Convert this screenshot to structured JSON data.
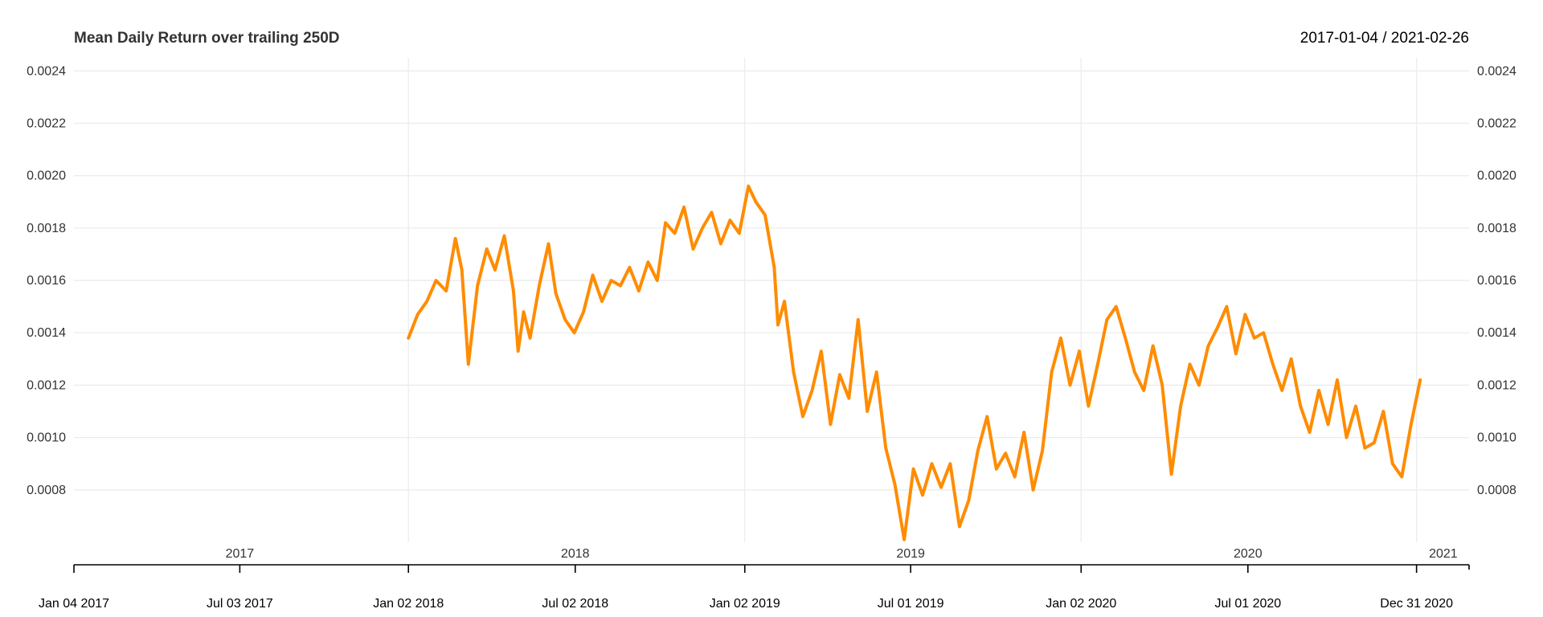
{
  "chart_data": {
    "type": "line",
    "title": "Mean Daily Return over trailing 250D",
    "date_range": "2017-01-04 / 2021-02-26",
    "xlabel": "",
    "ylabel": "",
    "x_start": "2017-01-04",
    "x_end": "2021-02-26",
    "ylim": [
      0.0006,
      0.00245
    ],
    "y_ticks": [
      "0.0008",
      "0.0010",
      "0.0012",
      "0.0014",
      "0.0016",
      "0.0018",
      "0.0020",
      "0.0022",
      "0.0024"
    ],
    "year_labels": [
      {
        "label": "2017",
        "date": "2017-07-03"
      },
      {
        "label": "2018",
        "date": "2018-07-02"
      },
      {
        "label": "2019",
        "date": "2019-07-01"
      },
      {
        "label": "2020",
        "date": "2020-07-01"
      },
      {
        "label": "2021",
        "date": "2021-01-29"
      }
    ],
    "year_grid_dates": [
      "2018-01-02",
      "2019-01-02",
      "2020-01-02",
      "2020-12-31"
    ],
    "date_ticks": [
      {
        "label": "Jan 04 2017",
        "date": "2017-01-04"
      },
      {
        "label": "Jul 03 2017",
        "date": "2017-07-03"
      },
      {
        "label": "Jan 02 2018",
        "date": "2018-01-02"
      },
      {
        "label": "Jul 02 2018",
        "date": "2018-07-02"
      },
      {
        "label": "Jan 02 2019",
        "date": "2019-01-02"
      },
      {
        "label": "Jul 01 2019",
        "date": "2019-07-01"
      },
      {
        "label": "Jan 02 2020",
        "date": "2020-01-02"
      },
      {
        "label": "Jul 01 2020",
        "date": "2020-07-01"
      },
      {
        "label": "Dec 31 2020",
        "date": "2020-12-31"
      }
    ],
    "minor_tick_dates": [
      "2021-02-26"
    ],
    "grid": true,
    "series": [
      {
        "color": "#ff8c00",
        "points": [
          [
            "2018-01-02",
            0.00138
          ],
          [
            "2018-01-12",
            0.00147
          ],
          [
            "2018-01-22",
            0.00152
          ],
          [
            "2018-02-01",
            0.0016
          ],
          [
            "2018-02-12",
            0.00156
          ],
          [
            "2018-02-22",
            0.00176
          ],
          [
            "2018-03-01",
            0.00164
          ],
          [
            "2018-03-08",
            0.00128
          ],
          [
            "2018-03-18",
            0.00158
          ],
          [
            "2018-03-28",
            0.00172
          ],
          [
            "2018-04-06",
            0.00164
          ],
          [
            "2018-04-16",
            0.00177
          ],
          [
            "2018-04-26",
            0.00156
          ],
          [
            "2018-05-01",
            0.00133
          ],
          [
            "2018-05-07",
            0.00148
          ],
          [
            "2018-05-14",
            0.00138
          ],
          [
            "2018-05-24",
            0.00158
          ],
          [
            "2018-06-03",
            0.00174
          ],
          [
            "2018-06-11",
            0.00155
          ],
          [
            "2018-06-21",
            0.00145
          ],
          [
            "2018-07-01",
            0.0014
          ],
          [
            "2018-07-11",
            0.00148
          ],
          [
            "2018-07-21",
            0.00162
          ],
          [
            "2018-07-31",
            0.00152
          ],
          [
            "2018-08-10",
            0.0016
          ],
          [
            "2018-08-20",
            0.00158
          ],
          [
            "2018-08-30",
            0.00165
          ],
          [
            "2018-09-09",
            0.00156
          ],
          [
            "2018-09-19",
            0.00167
          ],
          [
            "2018-09-29",
            0.0016
          ],
          [
            "2018-10-08",
            0.00182
          ],
          [
            "2018-10-18",
            0.00178
          ],
          [
            "2018-10-28",
            0.00188
          ],
          [
            "2018-11-07",
            0.00172
          ],
          [
            "2018-11-17",
            0.0018
          ],
          [
            "2018-11-27",
            0.00186
          ],
          [
            "2018-12-07",
            0.00174
          ],
          [
            "2018-12-17",
            0.00183
          ],
          [
            "2018-12-27",
            0.00178
          ],
          [
            "2019-01-06",
            0.00196
          ],
          [
            "2019-01-14",
            0.0019
          ],
          [
            "2019-01-24",
            0.00185
          ],
          [
            "2019-02-03",
            0.00165
          ],
          [
            "2019-02-07",
            0.00143
          ],
          [
            "2019-02-14",
            0.00152
          ],
          [
            "2019-02-24",
            0.00125
          ],
          [
            "2019-03-06",
            0.00108
          ],
          [
            "2019-03-16",
            0.00118
          ],
          [
            "2019-03-26",
            0.00133
          ],
          [
            "2019-04-05",
            0.00105
          ],
          [
            "2019-04-15",
            0.00124
          ],
          [
            "2019-04-25",
            0.00115
          ],
          [
            "2019-05-05",
            0.00145
          ],
          [
            "2019-05-15",
            0.0011
          ],
          [
            "2019-05-25",
            0.00125
          ],
          [
            "2019-06-04",
            0.00096
          ],
          [
            "2019-06-14",
            0.00082
          ],
          [
            "2019-06-24",
            0.00061
          ],
          [
            "2019-07-04",
            0.00088
          ],
          [
            "2019-07-14",
            0.00078
          ],
          [
            "2019-07-24",
            0.0009
          ],
          [
            "2019-08-03",
            0.00081
          ],
          [
            "2019-08-13",
            0.0009
          ],
          [
            "2019-08-23",
            0.00066
          ],
          [
            "2019-09-02",
            0.00076
          ],
          [
            "2019-09-12",
            0.00095
          ],
          [
            "2019-09-22",
            0.00108
          ],
          [
            "2019-10-02",
            0.00088
          ],
          [
            "2019-10-12",
            0.00094
          ],
          [
            "2019-10-22",
            0.00085
          ],
          [
            "2019-11-01",
            0.00102
          ],
          [
            "2019-11-11",
            0.0008
          ],
          [
            "2019-11-21",
            0.00095
          ],
          [
            "2019-12-01",
            0.00125
          ],
          [
            "2019-12-11",
            0.00138
          ],
          [
            "2019-12-21",
            0.0012
          ],
          [
            "2019-12-31",
            0.00133
          ],
          [
            "2020-01-10",
            0.00112
          ],
          [
            "2020-01-20",
            0.00128
          ],
          [
            "2020-01-30",
            0.00145
          ],
          [
            "2020-02-09",
            0.0015
          ],
          [
            "2020-02-19",
            0.00138
          ],
          [
            "2020-02-29",
            0.00125
          ],
          [
            "2020-03-10",
            0.00118
          ],
          [
            "2020-03-20",
            0.00135
          ],
          [
            "2020-03-30",
            0.0012
          ],
          [
            "2020-04-09",
            0.00086
          ],
          [
            "2020-04-19",
            0.00112
          ],
          [
            "2020-04-29",
            0.00128
          ],
          [
            "2020-05-09",
            0.0012
          ],
          [
            "2020-05-19",
            0.00135
          ],
          [
            "2020-05-29",
            0.00142
          ],
          [
            "2020-06-08",
            0.0015
          ],
          [
            "2020-06-18",
            0.00132
          ],
          [
            "2020-06-28",
            0.00147
          ],
          [
            "2020-07-08",
            0.00138
          ],
          [
            "2020-07-18",
            0.0014
          ],
          [
            "2020-07-28",
            0.00128
          ],
          [
            "2020-08-07",
            0.00118
          ],
          [
            "2020-08-17",
            0.0013
          ],
          [
            "2020-08-27",
            0.00112
          ],
          [
            "2020-09-06",
            0.00102
          ],
          [
            "2020-09-16",
            0.00118
          ],
          [
            "2020-09-26",
            0.00105
          ],
          [
            "2020-10-06",
            0.00122
          ],
          [
            "2020-10-16",
            0.001
          ],
          [
            "2020-10-26",
            0.00112
          ],
          [
            "2020-11-05",
            0.00096
          ],
          [
            "2020-11-15",
            0.00098
          ],
          [
            "2020-11-25",
            0.0011
          ],
          [
            "2020-12-05",
            0.0009
          ],
          [
            "2020-12-15",
            0.00085
          ],
          [
            "2020-12-25",
            0.00105
          ],
          [
            "2021-01-04",
            0.00122
          ]
        ]
      }
    ]
  }
}
